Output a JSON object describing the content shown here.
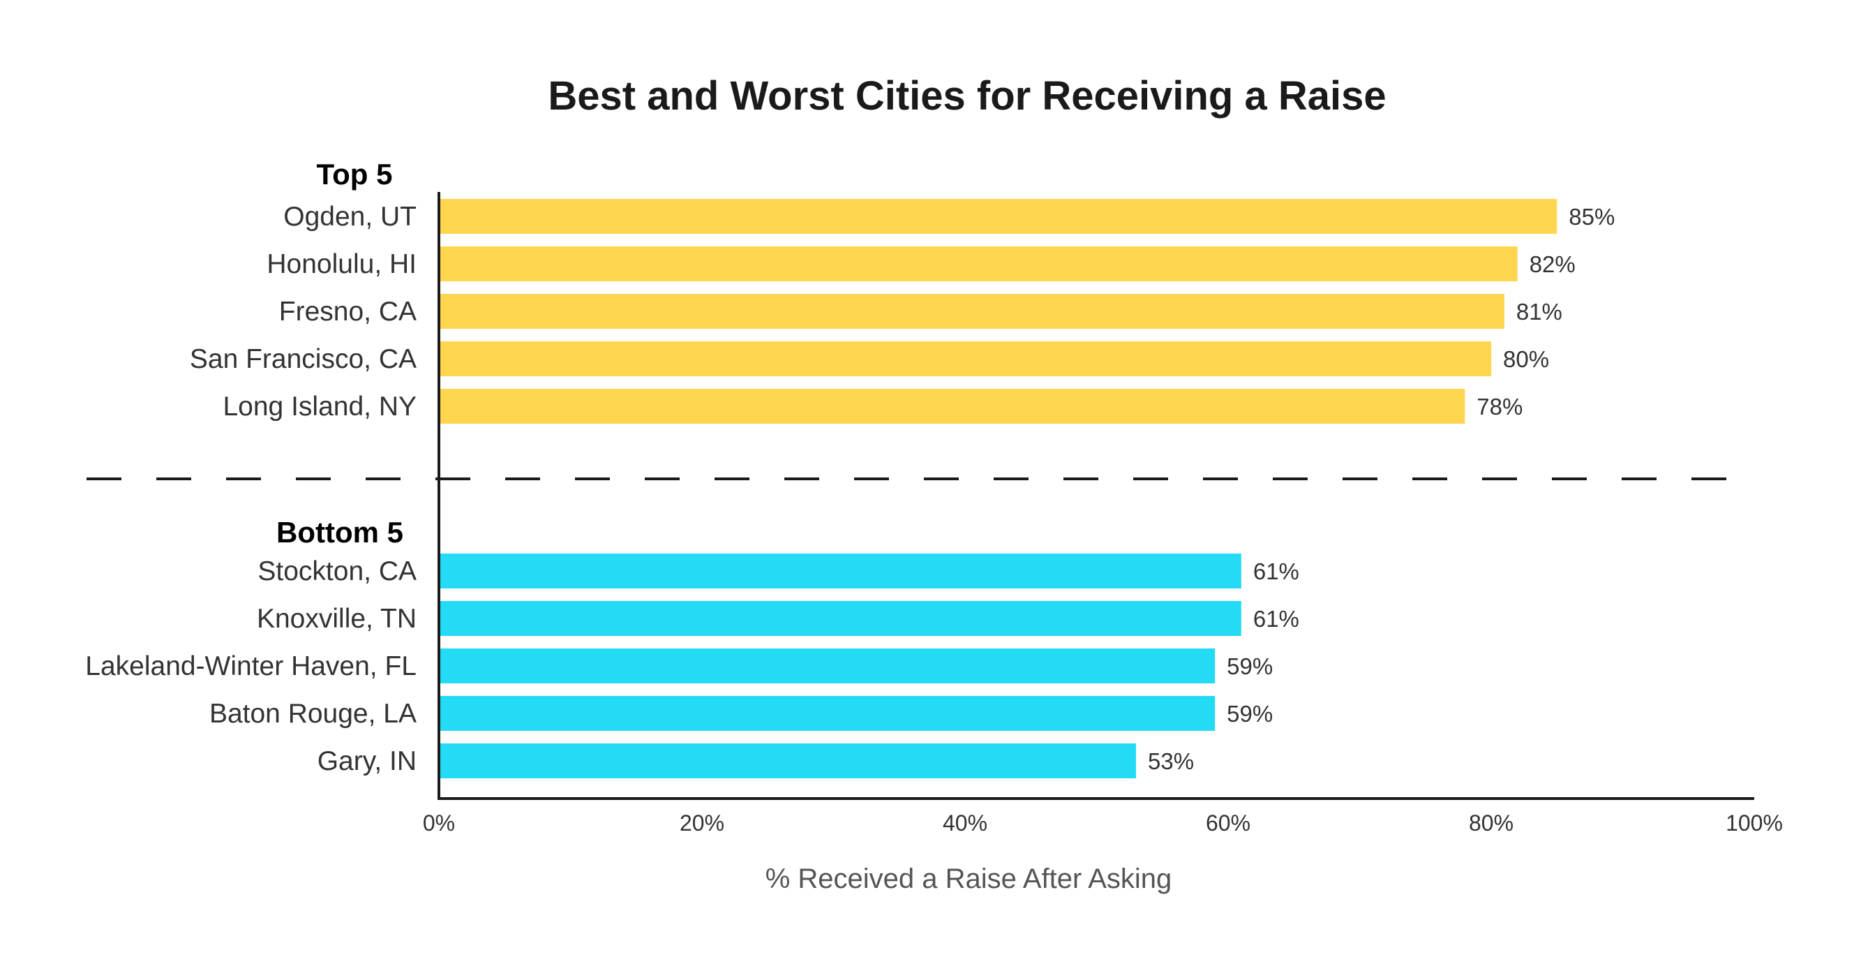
{
  "chart_data": {
    "type": "bar",
    "orientation": "horizontal",
    "title": "Best and Worst Cities for Receiving a Raise",
    "xlabel": "% Received a Raise After Asking",
    "ylabel": "",
    "xlim": [
      0,
      100
    ],
    "x_ticks": [
      "0%",
      "20%",
      "40%",
      "60%",
      "80%",
      "100%"
    ],
    "grid": false,
    "groups": [
      {
        "name": "Top 5",
        "color": "#FFD54F",
        "categories": [
          "Ogden, UT",
          "Honolulu, HI",
          "Fresno, CA",
          "San Francisco, CA",
          "Long Island, NY"
        ],
        "values": [
          85,
          82,
          81,
          80,
          78
        ],
        "value_labels": [
          "85%",
          "82%",
          "81%",
          "80%",
          "78%"
        ]
      },
      {
        "name": "Bottom 5",
        "color": "#23DBF5",
        "categories": [
          "Stockton, CA",
          "Knoxville, TN",
          "Lakeland-Winter Haven, FL",
          "Baton Rouge, LA",
          "Gary, IN"
        ],
        "values": [
          61,
          61,
          59,
          59,
          53
        ],
        "value_labels": [
          "61%",
          "61%",
          "59%",
          "59%",
          "53%"
        ]
      }
    ]
  }
}
